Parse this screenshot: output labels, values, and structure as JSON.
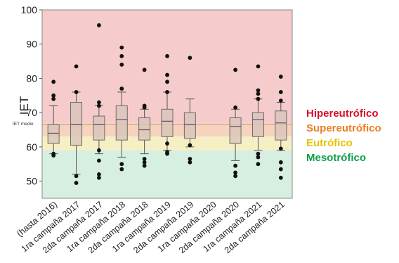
{
  "chart_data": {
    "type": "box",
    "ylabel": "IET",
    "ylim": [
      45,
      100
    ],
    "yticks": [
      50,
      60,
      70,
      80,
      90,
      100
    ],
    "mean_label": "IET medio",
    "mean_value": 66.5,
    "categories": [
      "(hasta 2016)",
      "1ra campaña 2017",
      "2da campaña 2017",
      "1ra campaña 2018",
      "2da campaña 2018",
      "1ra campaña 2019",
      "2da campaña 2019",
      "1ra campaña 2020",
      "2da campaña 2020",
      "1ra campaña 2021",
      "2da campaña 2021"
    ],
    "boxes": [
      {
        "q1": 61,
        "median": 64,
        "q3": 66.5,
        "whisker_low": 58,
        "whisker_high": 72,
        "outliers": [
          57.5,
          58,
          74,
          75,
          79
        ]
      },
      {
        "q1": 60.5,
        "median": 66.5,
        "q3": 73,
        "whisker_low": 52,
        "whisker_high": 76,
        "outliers": [
          49.5,
          51.5,
          76,
          83.5
        ]
      },
      {
        "q1": 62,
        "median": 66.5,
        "q3": 69,
        "whisker_low": 58,
        "whisker_high": 72,
        "outliers": [
          51,
          52,
          56,
          59,
          72,
          73,
          95.5
        ]
      },
      {
        "q1": 62,
        "median": 68,
        "q3": 72,
        "whisker_low": 57,
        "whisker_high": 76,
        "outliers": [
          53.5,
          55,
          77,
          84,
          86.5,
          89
        ]
      },
      {
        "q1": 62,
        "median": 65,
        "q3": 68.5,
        "whisker_low": 58,
        "whisker_high": 71,
        "outliers": [
          54.5,
          55.5,
          56.5,
          71.5,
          72,
          82.5
        ]
      },
      {
        "q1": 63,
        "median": 67.5,
        "q3": 71,
        "whisker_low": 59,
        "whisker_high": 76,
        "outliers": [
          58,
          58.5,
          61,
          76,
          79,
          81,
          86.5
        ]
      },
      {
        "q1": 62.5,
        "median": 66.5,
        "q3": 70,
        "whisker_low": 60,
        "whisker_high": 74,
        "outliers": [
          55.5,
          56.5,
          60.5,
          86
        ]
      },
      null,
      {
        "q1": 61,
        "median": 66,
        "q3": 68.5,
        "whisker_low": 56,
        "whisker_high": 71,
        "outliers": [
          51.5,
          52.5,
          54.5,
          71.5,
          82.5
        ]
      },
      {
        "q1": 63,
        "median": 68,
        "q3": 70,
        "whisker_low": 59,
        "whisker_high": 74,
        "outliers": [
          55,
          57,
          58,
          74,
          75.5,
          76.5,
          83.5
        ]
      },
      {
        "q1": 62,
        "median": 67,
        "q3": 70.5,
        "whisker_low": 59,
        "whisker_high": 73,
        "outliers": [
          51,
          53.5,
          55.5,
          59.5,
          73.5,
          76,
          80.5
        ]
      }
    ],
    "bands": [
      {
        "name": "Hipereutrófico",
        "from": 67,
        "to": 100,
        "color": "#f5cbcb"
      },
      {
        "name": "Supereutrófico",
        "from": 63,
        "to": 67,
        "color": "#f6d3bd"
      },
      {
        "name": "Eutrófico",
        "from": 59,
        "to": 63,
        "color": "#f6efc4"
      },
      {
        "name": "Mesotrófico",
        "from": 45,
        "to": 59,
        "color": "#d6efe1"
      }
    ],
    "legend": [
      {
        "label": "Hipereutrófico",
        "color": "#d6102a"
      },
      {
        "label": "Supereutrófico",
        "color": "#ee7d22"
      },
      {
        "label": "Eutrófico",
        "color": "#e9c100"
      },
      {
        "label": "Mesotrófico",
        "color": "#0e9f4b"
      }
    ]
  }
}
